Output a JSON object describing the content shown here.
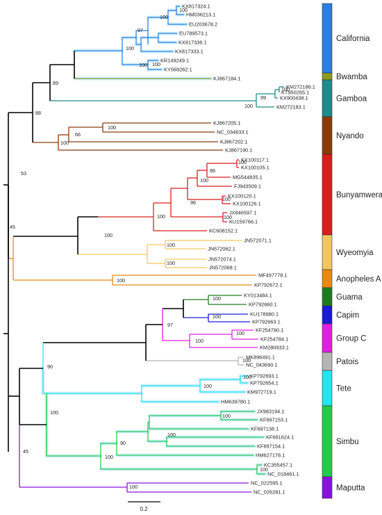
{
  "colors": {
    "California": "#2a7fe0",
    "Bwamba": "#8a9a1e",
    "Gamboa": "#1f8a8a",
    "Nyando": "#8b3a0a",
    "Bunyamwera": "#d91c1c",
    "Wyeomyia": "#f2c65e",
    "AnophelesA": "#e88a10",
    "Guama": "#1e7a1e",
    "Capim": "#1a1ad6",
    "GroupC": "#e21ee2",
    "Patois": "#b5b5b5",
    "Tete": "#22e6ee",
    "Simbu": "#22cc4a",
    "Maputta": "#8a10e0",
    "backbone": "#000000",
    "glow": "#cfefff"
  },
  "taxa": [
    {
      "label": "KX817324.1",
      "color": "California"
    },
    {
      "label": "HM036213.1",
      "color": "California"
    },
    {
      "label": "EU203678.2",
      "color": "California"
    },
    {
      "label": "EU789573.1",
      "color": "California"
    },
    {
      "label": "KX817336.1",
      "color": "California"
    },
    {
      "label": "KX817333.1",
      "color": "California"
    },
    {
      "label": "KR149249.1",
      "color": "California"
    },
    {
      "label": "KY569262.1",
      "color": "California"
    },
    {
      "label": "KJ867184.1",
      "color": "Bwamba"
    },
    {
      "label": "KM272186.1",
      "color": "Gamboa"
    },
    {
      "label": "KT950265.1",
      "color": "Gamboa"
    },
    {
      "label": "KX900438.1",
      "color": "Gamboa"
    },
    {
      "label": "KM272183.1",
      "color": "Gamboa"
    },
    {
      "label": "KJ867205.1",
      "color": "Nyando"
    },
    {
      "label": "NC_034633.1",
      "color": "Nyando"
    },
    {
      "label": "KJ867202.1",
      "color": "Nyando"
    },
    {
      "label": "KJ867190.1",
      "color": "Nyando"
    },
    {
      "label": "KX100117.1",
      "color": "Bunyamwera"
    },
    {
      "label": "KX100105.1",
      "color": "Bunyamwera"
    },
    {
      "label": "MG544835.1",
      "color": "Bunyamwera"
    },
    {
      "label": "FJ943509.1",
      "color": "Bunyamwera"
    },
    {
      "label": "KX100120.1",
      "color": "Bunyamwera"
    },
    {
      "label": "KX100126.1",
      "color": "Bunyamwera"
    },
    {
      "label": "JX846597.1",
      "color": "Bunyamwera"
    },
    {
      "label": "KU159766.1",
      "color": "Bunyamwera"
    },
    {
      "label": "KC608152.1",
      "color": "Bunyamwera"
    },
    {
      "label": "JN572071.1",
      "color": "Wyeomyia"
    },
    {
      "label": "JN572062.1",
      "color": "Wyeomyia"
    },
    {
      "label": "JN572074.1",
      "color": "Wyeomyia"
    },
    {
      "label": "JN572068.1",
      "color": "Wyeomyia"
    },
    {
      "label": "MF497778.1",
      "color": "AnophelesA"
    },
    {
      "label": "KP792672.1",
      "color": "AnophelesA"
    },
    {
      "label": "KY013484.1",
      "color": "Guama"
    },
    {
      "label": "KP792660.1",
      "color": "Guama"
    },
    {
      "label": "KU178980.1",
      "color": "Capim"
    },
    {
      "label": "KP792663.1",
      "color": "Capim"
    },
    {
      "label": "KF254790.1",
      "color": "GroupC"
    },
    {
      "label": "KF254784.1",
      "color": "GroupC"
    },
    {
      "label": "KM280933.1",
      "color": "GroupC"
    },
    {
      "label": "MK896491.1",
      "color": "Patois"
    },
    {
      "label": "NC_043690.1",
      "color": "Patois"
    },
    {
      "label": "KP792693.1",
      "color": "Tete"
    },
    {
      "label": "KP792654.1",
      "color": "Tete"
    },
    {
      "label": "KM972719.1",
      "color": "Tete"
    },
    {
      "label": "HM639780.1",
      "color": "Tete"
    },
    {
      "label": "JX983194.1",
      "color": "Simbu"
    },
    {
      "label": "KF697153.1",
      "color": "Simbu"
    },
    {
      "label": "KF697138.1",
      "color": "Simbu"
    },
    {
      "label": "KF691624.1",
      "color": "Simbu"
    },
    {
      "label": "KF697154.1",
      "color": "Simbu"
    },
    {
      "label": "HM627178.1",
      "color": "Simbu"
    },
    {
      "label": "KC355457.1",
      "color": "Simbu"
    },
    {
      "label": "NC_018461.1",
      "color": "Simbu"
    },
    {
      "label": "NC_022595.1",
      "color": "Maputta"
    },
    {
      "label": "NC_026281.1",
      "color": "Maputta"
    }
  ],
  "bootstrap": [
    {
      "label": "100",
      "clade": "California"
    },
    {
      "label": "100",
      "clade": "California"
    },
    {
      "label": "97",
      "clade": "California"
    },
    {
      "label": "100",
      "clade": "California"
    },
    {
      "label": "100",
      "clade": "California"
    },
    {
      "label": "100",
      "clade": "California"
    },
    {
      "label": "89",
      "clade": "backbone"
    },
    {
      "label": "88",
      "clade": "backbone"
    },
    {
      "label": "100",
      "clade": "Gamboa"
    },
    {
      "label": "99",
      "clade": "Gamboa"
    },
    {
      "label": "100",
      "clade": "Gamboa"
    },
    {
      "label": "100",
      "clade": "Nyando"
    },
    {
      "label": "66",
      "clade": "Nyando"
    },
    {
      "label": "100",
      "clade": "Nyando"
    },
    {
      "label": "53",
      "clade": "backbone"
    },
    {
      "label": "100",
      "clade": "Bunyamwera"
    },
    {
      "label": "88",
      "clade": "Bunyamwera"
    },
    {
      "label": "100",
      "clade": "Bunyamwera"
    },
    {
      "label": "100",
      "clade": "Bunyamwera"
    },
    {
      "label": "96",
      "clade": "Bunyamwera"
    },
    {
      "label": "100",
      "clade": "Bunyamwera"
    },
    {
      "label": "100",
      "clade": "Bunyamwera"
    },
    {
      "label": "100",
      "clade": "backbone"
    },
    {
      "label": "45",
      "clade": "backbone"
    },
    {
      "label": "100",
      "clade": "Wyeomyia"
    },
    {
      "label": "100",
      "clade": "Wyeomyia"
    },
    {
      "label": "100",
      "clade": "AnophelesA"
    },
    {
      "label": "100",
      "clade": "Guama"
    },
    {
      "label": "100",
      "clade": "Capim"
    },
    {
      "label": "97",
      "clade": "backbone"
    },
    {
      "label": "100",
      "clade": "GroupC"
    },
    {
      "label": "100",
      "clade": "GroupC"
    },
    {
      "label": "100",
      "clade": "Patois"
    },
    {
      "label": "100",
      "clade": "Tete"
    },
    {
      "label": "100",
      "clade": "Tete"
    },
    {
      "label": "90",
      "clade": "backbone"
    },
    {
      "label": "100",
      "clade": "backbone"
    },
    {
      "label": "100",
      "clade": "Simbu"
    },
    {
      "label": "100",
      "clade": "Simbu"
    },
    {
      "label": "90",
      "clade": "Simbu"
    },
    {
      "label": "100",
      "clade": "Simbu"
    },
    {
      "label": "100",
      "clade": "Simbu"
    },
    {
      "label": "45",
      "clade": "backbone"
    },
    {
      "label": "100",
      "clade": "Maputta"
    }
  ],
  "groups": [
    {
      "name": "California",
      "color": "California"
    },
    {
      "name": "Bwamba",
      "color": "Bwamba"
    },
    {
      "name": "Gamboa",
      "color": "Gamboa"
    },
    {
      "name": "Nyando",
      "color": "Nyando"
    },
    {
      "name": "Bunyamwera",
      "color": "Bunyamwera"
    },
    {
      "name": "Wyeomyia",
      "color": "Wyeomyia"
    },
    {
      "name": "Anopheles A",
      "color": "AnophelesA"
    },
    {
      "name": "Guama",
      "color": "Guama"
    },
    {
      "name": "Capim",
      "color": "Capim"
    },
    {
      "name": "Group C",
      "color": "GroupC"
    },
    {
      "name": "Patois",
      "color": "Patois"
    },
    {
      "name": "Tete",
      "color": "Tete"
    },
    {
      "name": "Simbu",
      "color": "Simbu"
    },
    {
      "name": "Maputta",
      "color": "Maputta"
    }
  ],
  "scale_bar": {
    "label": "0.2"
  }
}
